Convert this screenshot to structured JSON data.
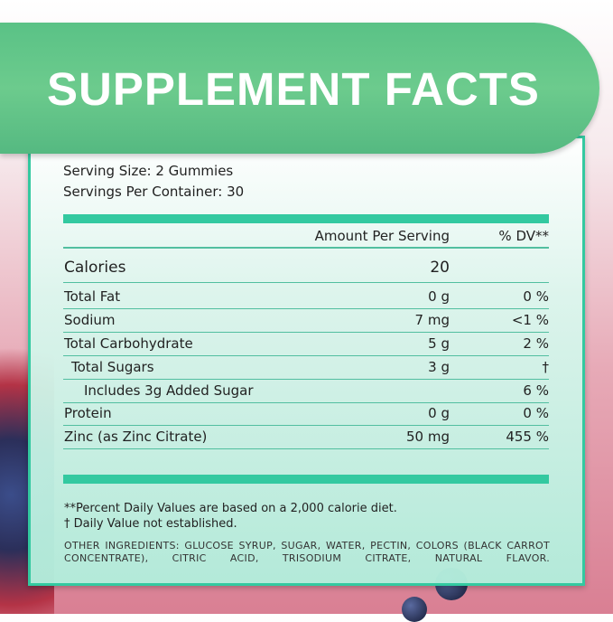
{
  "title": "SUPPLEMENT FACTS",
  "serving_size": "Serving Size: 2 Gummies",
  "servings_per_container": "Servings Per Container: 30",
  "header": {
    "amount": "Amount Per Serving",
    "dv": "% DV**"
  },
  "rows": [
    {
      "name": "Calories",
      "amount": "20",
      "dv": ""
    },
    {
      "name": "Total Fat",
      "amount": "0 g",
      "dv": "0 %"
    },
    {
      "name": "Sodium",
      "amount": "7 mg",
      "dv": "<1 %"
    },
    {
      "name": "Total Carbohydrate",
      "amount": "5 g",
      "dv": "2 %"
    },
    {
      "name": "Total Sugars",
      "amount": "3 g",
      "dv": "†"
    },
    {
      "name": "Includes 3g Added Sugar",
      "amount": "",
      "dv": "6 %"
    },
    {
      "name": "Protein",
      "amount": "0 g",
      "dv": "0 %"
    },
    {
      "name": "Zinc (as Zinc Citrate)",
      "amount": "50 mg",
      "dv": "455 %"
    }
  ],
  "footnote1": "**Percent Daily Values are based on a 2,000 calorie diet.",
  "footnote2": "† Daily Value not established.",
  "ingredients": "OTHER INGREDIENTS: GLUCOSE SYRUP, SUGAR, WATER, PECTIN, COLORS (BLACK CARROT CONCENTRATE), CITRIC ACID, TRISODIUM CITRATE, NATURAL FLAVOR.",
  "colors": {
    "banner": "#62c689",
    "accent": "#33c9a0",
    "background": "#d97f93"
  }
}
